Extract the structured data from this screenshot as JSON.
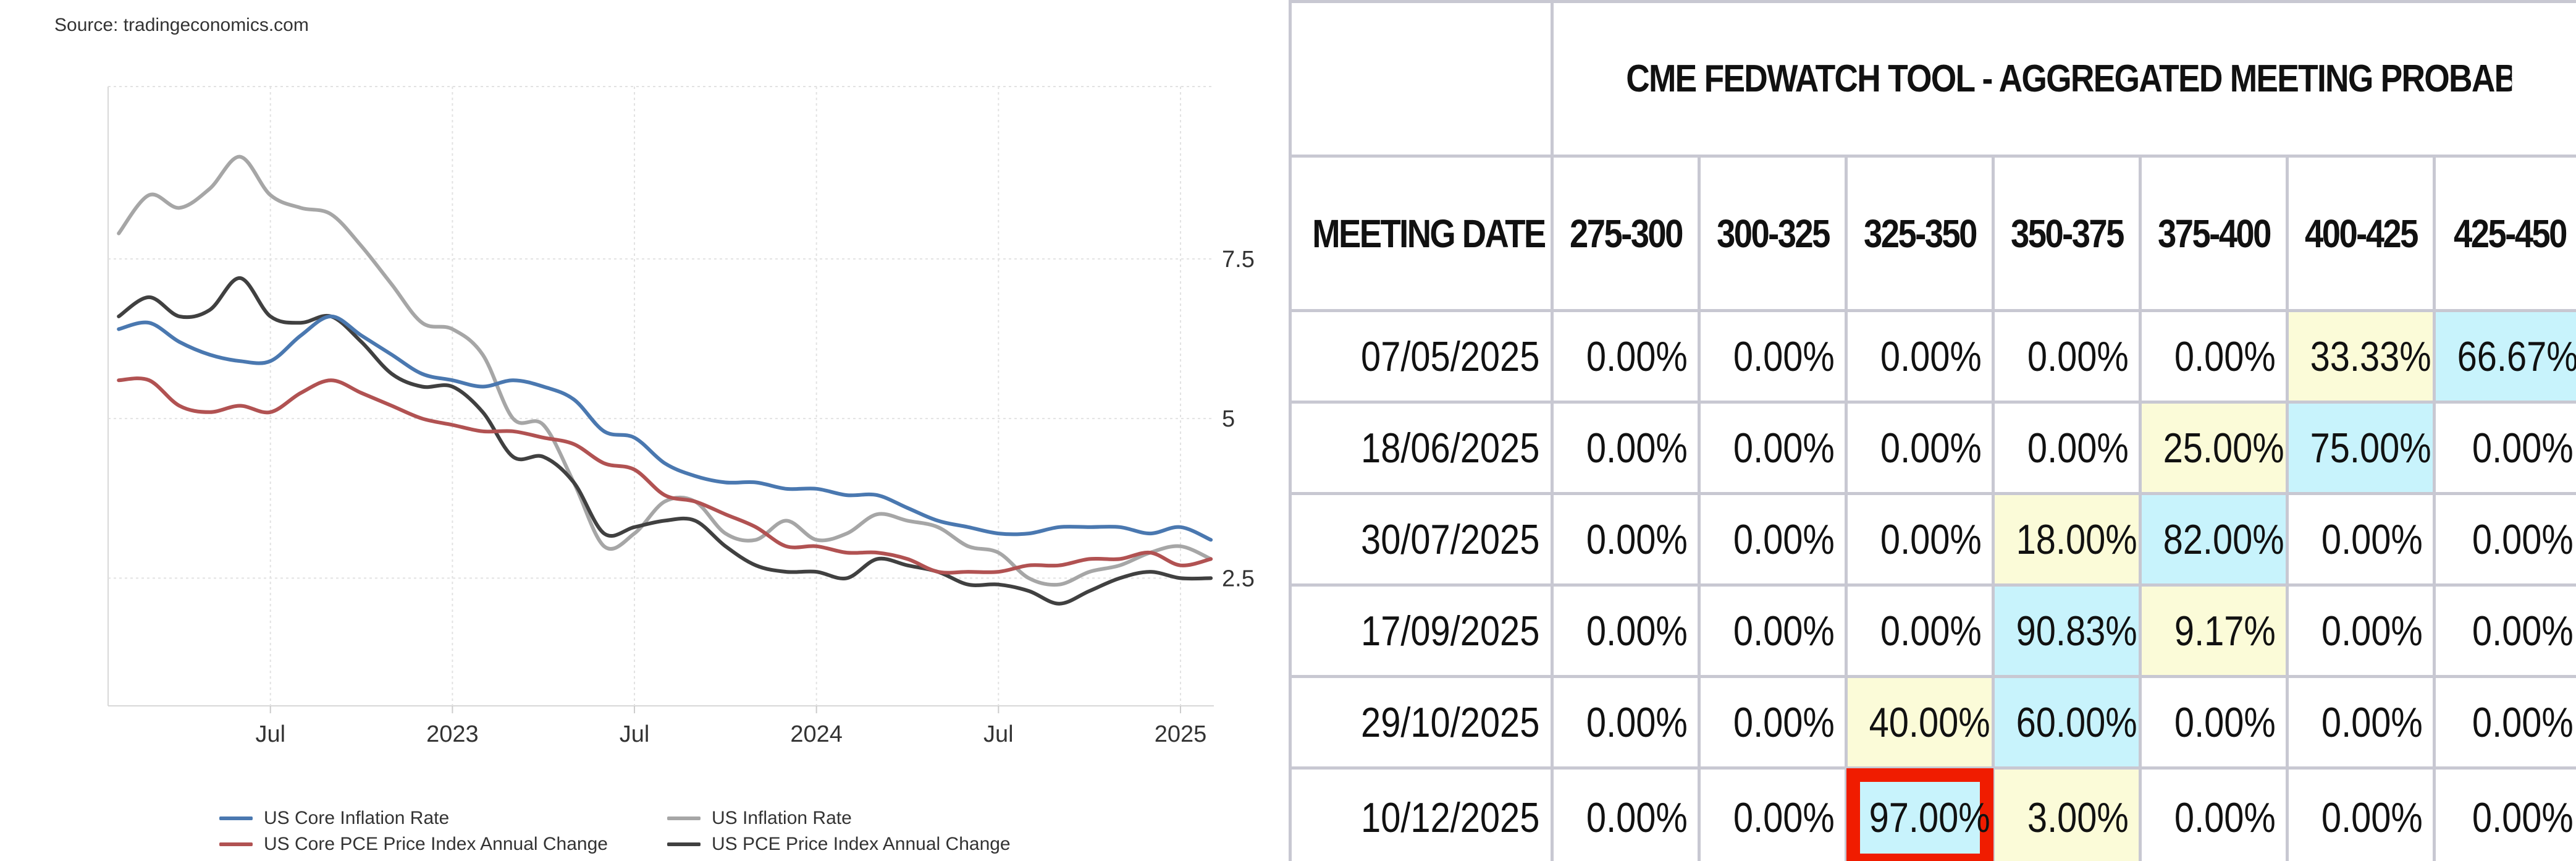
{
  "source_note": "Source: tradingeconomics.com",
  "colors": {
    "core_cpi": "#4a78b0",
    "core_pce": "#b15252",
    "cpi": "#a6a6a6",
    "pce": "#404040",
    "grid": "#e2e2e2",
    "yellow_cell": "#fbfbd8",
    "cyan_cell": "#c8f3fc",
    "highlight_box": "#f01c00"
  },
  "chart_data": {
    "type": "line",
    "x_tick_labels": [
      "Jul",
      "2023",
      "Jul",
      "2024",
      "Jul",
      "2025"
    ],
    "x_tick_dates": [
      "2022-07",
      "2023-01",
      "2023-07",
      "2024-01",
      "2024-07",
      "2025-01"
    ],
    "y_tick_labels": [
      "2.5",
      "5",
      "7.5"
    ],
    "y_ticks": [
      2.5,
      5,
      7.5
    ],
    "ylim": [
      0.5,
      10.2
    ],
    "xlim": [
      "2022-02",
      "2025-02"
    ],
    "grid": true,
    "legend_position": "bottom",
    "x": [
      "2022-02",
      "2022-03",
      "2022-04",
      "2022-05",
      "2022-06",
      "2022-07",
      "2022-08",
      "2022-09",
      "2022-10",
      "2022-11",
      "2022-12",
      "2023-01",
      "2023-02",
      "2023-03",
      "2023-04",
      "2023-05",
      "2023-06",
      "2023-07",
      "2023-08",
      "2023-09",
      "2023-10",
      "2023-11",
      "2023-12",
      "2024-01",
      "2024-02",
      "2024-03",
      "2024-04",
      "2024-05",
      "2024-06",
      "2024-07",
      "2024-08",
      "2024-09",
      "2024-10",
      "2024-11",
      "2024-12",
      "2025-01",
      "2025-02"
    ],
    "series": [
      {
        "name": "US Core Inflation Rate",
        "color_key": "core_cpi",
        "values": [
          6.4,
          6.5,
          6.2,
          6.0,
          5.9,
          5.9,
          6.3,
          6.6,
          6.3,
          6.0,
          5.7,
          5.6,
          5.5,
          5.6,
          5.5,
          5.3,
          4.8,
          4.7,
          4.3,
          4.1,
          4.0,
          4.0,
          3.9,
          3.9,
          3.8,
          3.8,
          3.6,
          3.4,
          3.3,
          3.2,
          3.2,
          3.3,
          3.3,
          3.3,
          3.2,
          3.3,
          3.1
        ]
      },
      {
        "name": "US Core PCE Price Index Annual Change",
        "color_key": "core_pce",
        "values": [
          5.6,
          5.6,
          5.2,
          5.1,
          5.2,
          5.1,
          5.4,
          5.6,
          5.4,
          5.2,
          5.0,
          4.9,
          4.8,
          4.8,
          4.7,
          4.6,
          4.3,
          4.2,
          3.8,
          3.7,
          3.5,
          3.3,
          3.0,
          3.0,
          2.9,
          2.9,
          2.8,
          2.6,
          2.6,
          2.6,
          2.7,
          2.7,
          2.8,
          2.8,
          2.9,
          2.7,
          2.8
        ]
      },
      {
        "name": "US Inflation Rate",
        "color_key": "cpi",
        "values": [
          7.9,
          8.5,
          8.3,
          8.6,
          9.1,
          8.5,
          8.3,
          8.2,
          7.7,
          7.1,
          6.5,
          6.4,
          6.0,
          5.0,
          4.9,
          4.0,
          3.0,
          3.2,
          3.7,
          3.7,
          3.2,
          3.1,
          3.4,
          3.1,
          3.2,
          3.5,
          3.4,
          3.3,
          3.0,
          2.9,
          2.5,
          2.4,
          2.6,
          2.7,
          2.9,
          3.0,
          2.8
        ]
      },
      {
        "name": "US PCE Price Index Annual Change",
        "color_key": "pce",
        "values": [
          6.6,
          6.9,
          6.6,
          6.7,
          7.2,
          6.6,
          6.5,
          6.6,
          6.2,
          5.7,
          5.5,
          5.5,
          5.1,
          4.4,
          4.4,
          4.0,
          3.2,
          3.3,
          3.4,
          3.4,
          3.0,
          2.7,
          2.6,
          2.6,
          2.5,
          2.8,
          2.7,
          2.6,
          2.4,
          2.4,
          2.3,
          2.1,
          2.3,
          2.5,
          2.6,
          2.5,
          2.5
        ]
      }
    ]
  },
  "legend": [
    {
      "label": "US Core Inflation Rate",
      "color_key": "core_cpi"
    },
    {
      "label": "US Inflation Rate",
      "color_key": "cpi"
    },
    {
      "label": "US Core PCE Price Index Annual Change",
      "color_key": "core_pce"
    },
    {
      "label": "US PCE Price Index Annual Change",
      "color_key": "pce"
    }
  ],
  "table": {
    "title": "CME FEDWATCH TOOL - AGGREGATED MEETING PROBABILITIES",
    "date_header": "MEETING DATE",
    "columns": [
      "275-300",
      "300-325",
      "325-350",
      "350-375",
      "375-400",
      "400-425",
      "425-450"
    ],
    "rows": [
      {
        "date": "07/05/2025",
        "values": [
          "0.00%",
          "0.00%",
          "0.00%",
          "0.00%",
          "0.00%",
          "33.33%",
          "66.67%"
        ],
        "styles": [
          "",
          "",
          "",
          "",
          "",
          "yellow",
          "cyan"
        ]
      },
      {
        "date": "18/06/2025",
        "values": [
          "0.00%",
          "0.00%",
          "0.00%",
          "0.00%",
          "25.00%",
          "75.00%",
          "0.00%"
        ],
        "styles": [
          "",
          "",
          "",
          "",
          "yellow",
          "cyan",
          ""
        ]
      },
      {
        "date": "30/07/2025",
        "values": [
          "0.00%",
          "0.00%",
          "0.00%",
          "18.00%",
          "82.00%",
          "0.00%",
          "0.00%"
        ],
        "styles": [
          "",
          "",
          "",
          "yellow",
          "cyan",
          "",
          ""
        ]
      },
      {
        "date": "17/09/2025",
        "values": [
          "0.00%",
          "0.00%",
          "0.00%",
          "90.83%",
          "9.17%",
          "0.00%",
          "0.00%"
        ],
        "styles": [
          "",
          "",
          "",
          "cyan",
          "yellow",
          "",
          ""
        ]
      },
      {
        "date": "29/10/2025",
        "values": [
          "0.00%",
          "0.00%",
          "40.00%",
          "60.00%",
          "0.00%",
          "0.00%",
          "0.00%"
        ],
        "styles": [
          "",
          "",
          "yellow",
          "cyan",
          "",
          "",
          ""
        ]
      },
      {
        "date": "10/12/2025",
        "values": [
          "0.00%",
          "0.00%",
          "97.00%",
          "3.00%",
          "0.00%",
          "0.00%",
          "0.00%"
        ],
        "styles": [
          "",
          "",
          "red-box",
          "yellow",
          "",
          "",
          ""
        ]
      }
    ]
  }
}
